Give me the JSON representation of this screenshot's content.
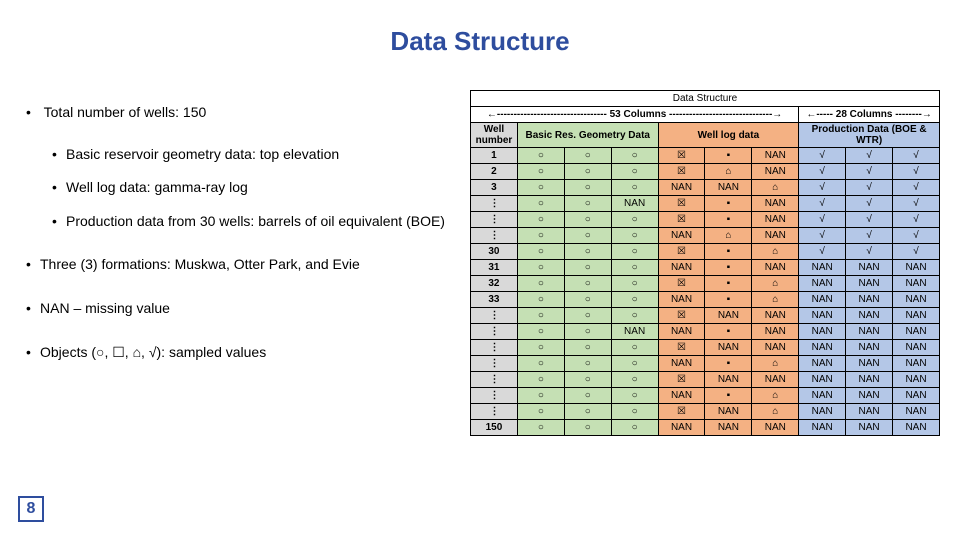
{
  "title": "Data Structure",
  "bullets": {
    "total_wells": "Total number of wells: 150",
    "sub": {
      "geom": "Basic reservoir geometry data: top elevation",
      "welllog": "Well log data: gamma-ray log",
      "prod": "Production data from 30 wells: barrels of oil equivalent (BOE)"
    },
    "formations": "Three (3) formations: Muskwa, Otter Park, and Evie",
    "nan": "NAN – missing value",
    "objects": "Objects (○, ☐, ⌂, √): sampled values"
  },
  "table": {
    "title": "Data Structure",
    "span_left": "←--------------------------------- 53 Columns -------------------------------→",
    "span_right": "←----- 28 Columns --------→",
    "headers": {
      "wellnum": "Well number",
      "geom": "Basic Res. Geometry Data",
      "welllog": "Well log data",
      "prod": "Production Data (BOE & WTR)"
    },
    "colors": {
      "geom": "#c5e0b4",
      "welllog": "#f4b183",
      "prod": "#b4c7e7",
      "wellnum": "#d9d9d9",
      "header_bg": "#ffffff",
      "border": "#000000",
      "title_color": "#2e4d9e",
      "text_color": "#000000"
    },
    "rows": [
      {
        "wn": "1",
        "g": [
          "○",
          "○",
          "○"
        ],
        "w": [
          "☒",
          "▪",
          "NAN"
        ],
        "p": [
          "√",
          "√",
          "√"
        ]
      },
      {
        "wn": "2",
        "g": [
          "○",
          "○",
          "○"
        ],
        "w": [
          "☒",
          "⌂",
          "NAN"
        ],
        "p": [
          "√",
          "√",
          "√"
        ]
      },
      {
        "wn": "3",
        "g": [
          "○",
          "○",
          "○"
        ],
        "w": [
          "NAN",
          "NAN",
          "⌂"
        ],
        "p": [
          "√",
          "√",
          "√"
        ]
      },
      {
        "wn": "⋮",
        "g": [
          "○",
          "○",
          "NAN"
        ],
        "w": [
          "☒",
          "▪",
          "NAN"
        ],
        "p": [
          "√",
          "√",
          "√"
        ]
      },
      {
        "wn": "⋮",
        "g": [
          "○",
          "○",
          "○"
        ],
        "w": [
          "☒",
          "▪",
          "NAN"
        ],
        "p": [
          "√",
          "√",
          "√"
        ]
      },
      {
        "wn": "⋮",
        "g": [
          "○",
          "○",
          "○"
        ],
        "w": [
          "NAN",
          "⌂",
          "NAN"
        ],
        "p": [
          "√",
          "√",
          "√"
        ]
      },
      {
        "wn": "30",
        "g": [
          "○",
          "○",
          "○"
        ],
        "w": [
          "☒",
          "▪",
          "⌂"
        ],
        "p": [
          "√",
          "√",
          "√"
        ]
      },
      {
        "wn": "31",
        "g": [
          "○",
          "○",
          "○"
        ],
        "w": [
          "NAN",
          "▪",
          "NAN"
        ],
        "p": [
          "NAN",
          "NAN",
          "NAN"
        ]
      },
      {
        "wn": "32",
        "g": [
          "○",
          "○",
          "○"
        ],
        "w": [
          "☒",
          "▪",
          "⌂"
        ],
        "p": [
          "NAN",
          "NAN",
          "NAN"
        ]
      },
      {
        "wn": "33",
        "g": [
          "○",
          "○",
          "○"
        ],
        "w": [
          "NAN",
          "▪",
          "⌂"
        ],
        "p": [
          "NAN",
          "NAN",
          "NAN"
        ]
      },
      {
        "wn": "⋮",
        "g": [
          "○",
          "○",
          "○"
        ],
        "w": [
          "☒",
          "NAN",
          "NAN"
        ],
        "p": [
          "NAN",
          "NAN",
          "NAN"
        ]
      },
      {
        "wn": "⋮",
        "g": [
          "○",
          "○",
          "NAN"
        ],
        "w": [
          "NAN",
          "▪",
          "NAN"
        ],
        "p": [
          "NAN",
          "NAN",
          "NAN"
        ]
      },
      {
        "wn": "⋮",
        "g": [
          "○",
          "○",
          "○"
        ],
        "w": [
          "☒",
          "NAN",
          "NAN"
        ],
        "p": [
          "NAN",
          "NAN",
          "NAN"
        ]
      },
      {
        "wn": "⋮",
        "g": [
          "○",
          "○",
          "○"
        ],
        "w": [
          "NAN",
          "▪",
          "⌂"
        ],
        "p": [
          "NAN",
          "NAN",
          "NAN"
        ]
      },
      {
        "wn": "⋮",
        "g": [
          "○",
          "○",
          "○"
        ],
        "w": [
          "☒",
          "NAN",
          "NAN"
        ],
        "p": [
          "NAN",
          "NAN",
          "NAN"
        ]
      },
      {
        "wn": "⋮",
        "g": [
          "○",
          "○",
          "○"
        ],
        "w": [
          "NAN",
          "▪",
          "⌂"
        ],
        "p": [
          "NAN",
          "NAN",
          "NAN"
        ]
      },
      {
        "wn": "⋮",
        "g": [
          "○",
          "○",
          "○"
        ],
        "w": [
          "☒",
          "NAN",
          "⌂"
        ],
        "p": [
          "NAN",
          "NAN",
          "NAN"
        ]
      },
      {
        "wn": "150",
        "g": [
          "○",
          "○",
          "○"
        ],
        "w": [
          "NAN",
          "NAN",
          "NAN"
        ],
        "p": [
          "NAN",
          "NAN",
          "NAN"
        ]
      }
    ]
  },
  "page_number": "8"
}
